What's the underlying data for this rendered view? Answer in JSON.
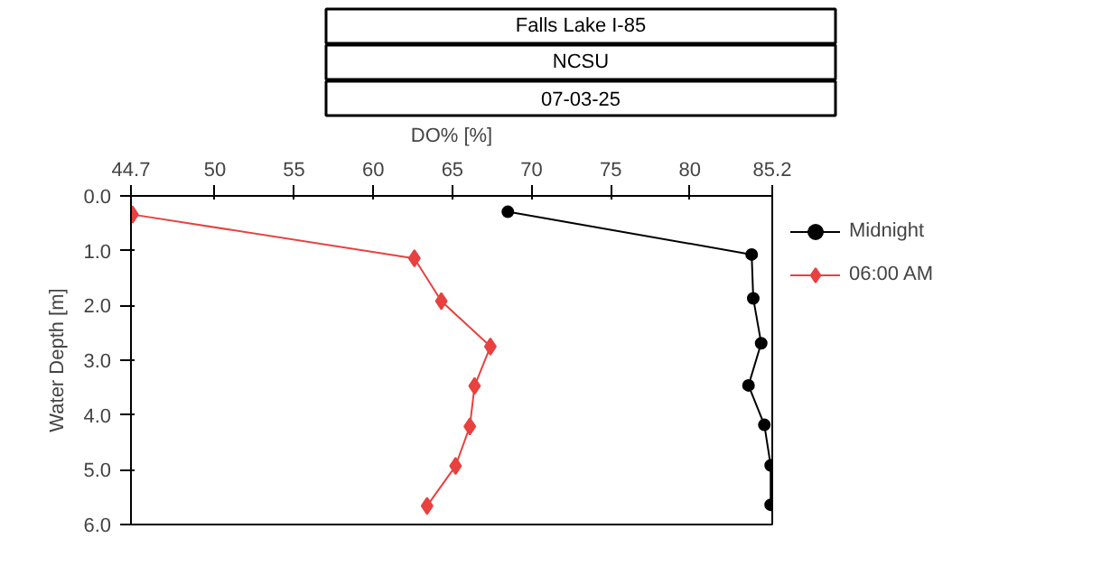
{
  "chart_data": {
    "type": "line",
    "title": "Falls Lake I-85",
    "subtitle": "NCSU",
    "annotations": [
      "07-03-25"
    ],
    "xlabel": "DO% [%]",
    "ylabel": "Water Depth [m]",
    "xlim": [
      44.7,
      85.2
    ],
    "xticks": [
      44.7,
      50,
      55,
      60,
      65,
      70,
      75,
      80,
      85.2
    ],
    "ylim": [
      6.0,
      0.0
    ],
    "yticks": [
      {
        "value": 0,
        "label": "0.0"
      },
      {
        "value": 1,
        "label": "1.0"
      },
      {
        "value": 2,
        "label": "2.0"
      },
      {
        "value": 3,
        "label": "3.0"
      },
      {
        "value": 4,
        "label": "4.0"
      },
      {
        "value": 5,
        "label": "5.0"
      },
      {
        "value": 6,
        "label": "6.0"
      }
    ],
    "grid": false,
    "legend": "top right",
    "line_style": "solid",
    "series": [
      {
        "name": "Midnight",
        "color": "#000000",
        "marker": "circle",
        "x": [
          68.5,
          83.9,
          84.0,
          84.5,
          83.7,
          84.7,
          85.1,
          85.1
        ],
        "values": [
          0.29,
          1.07,
          1.87,
          2.69,
          3.46,
          4.18,
          4.92,
          5.64
        ]
      },
      {
        "name": "06:00 AM",
        "color": "#e8413f",
        "marker": "diamond",
        "x": [
          44.8,
          62.6,
          64.3,
          67.4,
          66.4,
          66.1,
          65.2,
          63.4
        ],
        "values": [
          0.34,
          1.14,
          1.92,
          2.75,
          3.47,
          4.21,
          4.93,
          5.66
        ]
      }
    ]
  }
}
